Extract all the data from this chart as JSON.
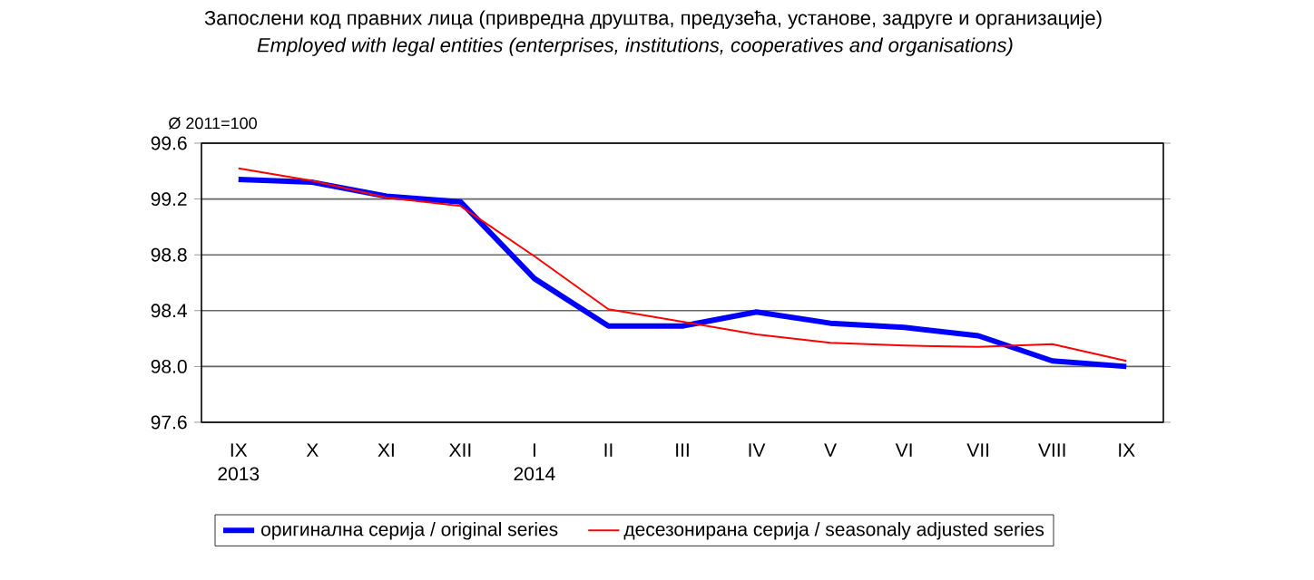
{
  "chart_data": {
    "type": "line",
    "title": "Запослени код правних лица (привредна друштва, предузећа, установе, задруге и организације)",
    "subtitle": "Employed with legal entities (enterprises, institutions, cooperatives and organisations)",
    "categories": [
      "IX",
      "X",
      "XI",
      "XII",
      "I",
      "II",
      "III",
      "IV",
      "V",
      "VI",
      "VII",
      "VIII",
      "IX"
    ],
    "series": [
      {
        "name": "оригинална серија / original series",
        "color": "#0000ff",
        "values": [
          99.34,
          99.32,
          99.22,
          99.18,
          98.63,
          98.29,
          98.29,
          98.39,
          98.31,
          98.28,
          98.22,
          98.04,
          98.0
        ]
      },
      {
        "name": "десезонирана серија / seasonaly adjusted series",
        "color": "#ff0000",
        "values": [
          99.42,
          99.33,
          99.21,
          99.15,
          98.79,
          98.41,
          98.32,
          98.23,
          98.17,
          98.15,
          98.14,
          98.16,
          98.04
        ]
      }
    ],
    "ylim": [
      97.6,
      99.6
    ],
    "yticks": [
      {
        "value": 97.6,
        "label": "97.6"
      },
      {
        "value": 98.0,
        "label": "98.0"
      },
      {
        "value": 98.4,
        "label": "98.4"
      },
      {
        "value": 98.8,
        "label": "98.8"
      },
      {
        "value": 99.2,
        "label": "99.2"
      },
      {
        "value": 99.6,
        "label": "99.6"
      }
    ],
    "grid": "y",
    "legend": "bottom",
    "marker": "none",
    "line_style": "solid",
    "annotations": [
      "Ø 2011=100",
      "2013",
      "2014"
    ]
  }
}
